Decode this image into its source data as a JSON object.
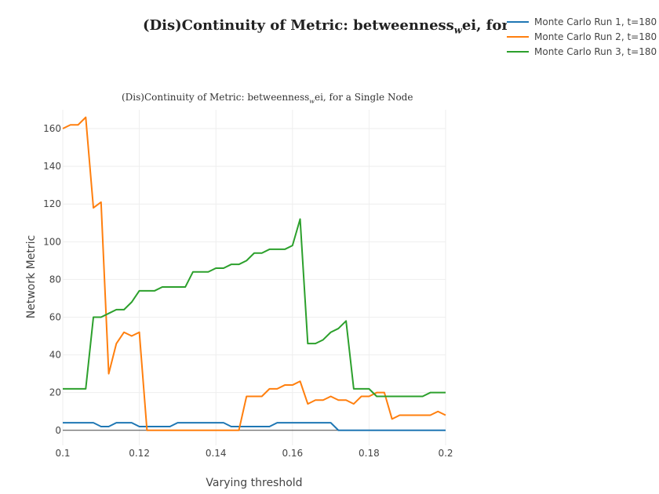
{
  "chart_data": {
    "type": "line",
    "title": "(Dis)Continuity of Metric: betweenness",
    "title_subscript": "w",
    "title_suffix": "ei, for a Single No",
    "subtitle": "(Dis)Continuity of Metric: betweenness",
    "subtitle_subscript": "w",
    "subtitle_suffix": "ei, for a Single Node",
    "xlabel": "Varying threshold",
    "ylabel": "Network Metric",
    "xlim": [
      0.1,
      0.2
    ],
    "ylim": [
      -8,
      170
    ],
    "x_ticks": [
      "0.1",
      "0.12",
      "0.14",
      "0.16",
      "0.18",
      "0.2"
    ],
    "y_ticks": [
      "0",
      "20",
      "40",
      "60",
      "80",
      "100",
      "120",
      "140",
      "160"
    ],
    "grid": true,
    "legend_position": "top-right",
    "x": [
      0.1,
      0.102,
      0.104,
      0.106,
      0.108,
      0.11,
      0.112,
      0.114,
      0.116,
      0.118,
      0.12,
      0.122,
      0.124,
      0.126,
      0.128,
      0.13,
      0.132,
      0.134,
      0.136,
      0.138,
      0.14,
      0.142,
      0.144,
      0.146,
      0.148,
      0.15,
      0.152,
      0.154,
      0.156,
      0.158,
      0.16,
      0.162,
      0.164,
      0.166,
      0.168,
      0.17,
      0.172,
      0.174,
      0.176,
      0.178,
      0.18,
      0.182,
      0.184,
      0.186,
      0.188,
      0.19,
      0.192,
      0.194,
      0.196,
      0.198,
      0.2
    ],
    "series": [
      {
        "name": "Monte Carlo Run 1, t=180",
        "color": "#1f77b4",
        "values": [
          4,
          4,
          4,
          4,
          4,
          2,
          2,
          4,
          4,
          4,
          2,
          2,
          2,
          2,
          2,
          4,
          4,
          4,
          4,
          4,
          4,
          4,
          2,
          2,
          2,
          2,
          2,
          2,
          4,
          4,
          4,
          4,
          4,
          4,
          4,
          4,
          0,
          0,
          0,
          0,
          0,
          0,
          0,
          0,
          0,
          0,
          0,
          0,
          0,
          0,
          0
        ]
      },
      {
        "name": "Monte Carlo Run 2, t=180",
        "color": "#ff7f0e",
        "values": [
          160,
          162,
          162,
          166,
          118,
          121,
          30,
          46,
          52,
          50,
          52,
          0,
          0,
          0,
          0,
          0,
          0,
          0,
          0,
          0,
          0,
          0,
          0,
          0,
          18,
          18,
          18,
          22,
          22,
          24,
          24,
          26,
          14,
          16,
          16,
          18,
          16,
          16,
          14,
          18,
          18,
          20,
          20,
          6,
          8,
          8,
          8,
          8,
          8,
          10,
          8
        ]
      },
      {
        "name": "Monte Carlo Run 3, t=180",
        "color": "#2ca02c",
        "values": [
          22,
          22,
          22,
          22,
          60,
          60,
          62,
          64,
          64,
          68,
          74,
          74,
          74,
          76,
          76,
          76,
          76,
          84,
          84,
          84,
          86,
          86,
          88,
          88,
          90,
          94,
          94,
          96,
          96,
          96,
          98,
          112,
          46,
          46,
          48,
          52,
          54,
          58,
          22,
          22,
          22,
          18,
          18,
          18,
          18,
          18,
          18,
          18,
          20,
          20,
          20
        ]
      }
    ]
  }
}
